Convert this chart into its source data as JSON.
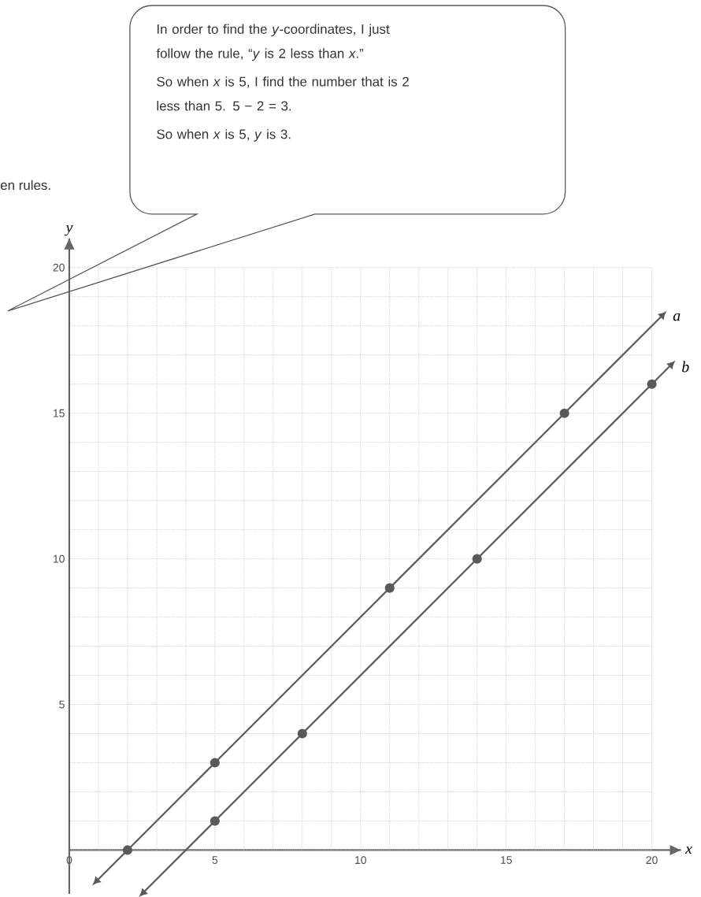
{
  "chart_data": {
    "type": "line",
    "xlabel": "x",
    "ylabel": "y",
    "xlim": [
      0,
      21
    ],
    "ylim": [
      -1.5,
      21
    ],
    "xticks": [
      0,
      5,
      10,
      15,
      20
    ],
    "yticks": [
      5,
      10,
      15,
      20
    ],
    "grid": true,
    "marker": "circle",
    "annotations": [
      "en rules.",
      "In order to find the *y*-coordinates, I just follow the rule, “*y* is 2 less than *x*.”",
      "So when *x* is 5, I find the number that is 2 less than 5.  5 − 2 = 3.",
      "So when *x* is 5, *y* is 3."
    ],
    "series": [
      {
        "name": "a",
        "color": "#5a5a5a",
        "x": [
          1,
          2,
          5,
          11,
          17,
          20.3
        ],
        "values": [
          -1,
          0,
          3,
          9,
          15,
          18.3
        ]
      },
      {
        "name": "b",
        "color": "#5a5a5a",
        "x": [
          2.6,
          5,
          8,
          14,
          20,
          20.6
        ],
        "values": [
          -1.4,
          1,
          4,
          10,
          16,
          16.6
        ]
      }
    ]
  }
}
